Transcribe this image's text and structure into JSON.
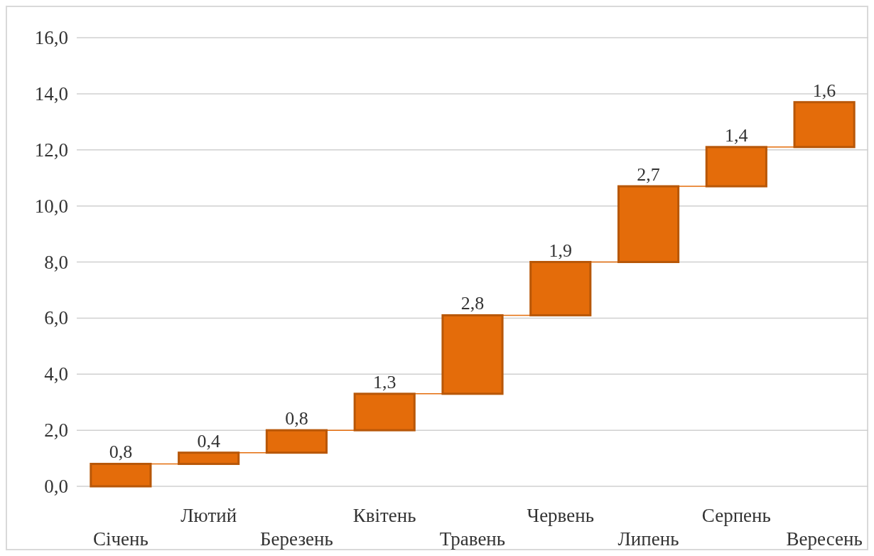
{
  "chart_data": {
    "type": "bar",
    "categories": [
      "Січень",
      "Лютий",
      "Березень",
      "Квітень",
      "Травень",
      "Червень",
      "Липень",
      "Серпень",
      "Вересень"
    ],
    "values": [
      0.8,
      0.4,
      0.8,
      1.3,
      2.8,
      1.9,
      2.7,
      1.4,
      1.6
    ],
    "base": [
      0,
      0.8,
      1.2,
      2.0,
      3.3,
      6.1,
      8.0,
      10.7,
      12.1
    ],
    "color": "#e46c0a",
    "ylim": [
      0,
      16
    ],
    "yticks": [
      {
        "value": 0,
        "label": "0,0"
      },
      {
        "value": 2,
        "label": "2,0"
      },
      {
        "value": 4,
        "label": "4,0"
      },
      {
        "value": 6,
        "label": "6,0"
      },
      {
        "value": 8,
        "label": "8,0"
      },
      {
        "value": 10,
        "label": "10,0"
      },
      {
        "value": 12,
        "label": "12,0"
      },
      {
        "value": 14,
        "label": "14,0"
      },
      {
        "value": 16,
        "label": "16,0"
      }
    ],
    "value_labels": [
      "0,8",
      "0,4",
      "0,8",
      "1,3",
      "2,8",
      "1,9",
      "2,7",
      "1,4",
      "1,6"
    ],
    "grid": "y"
  }
}
